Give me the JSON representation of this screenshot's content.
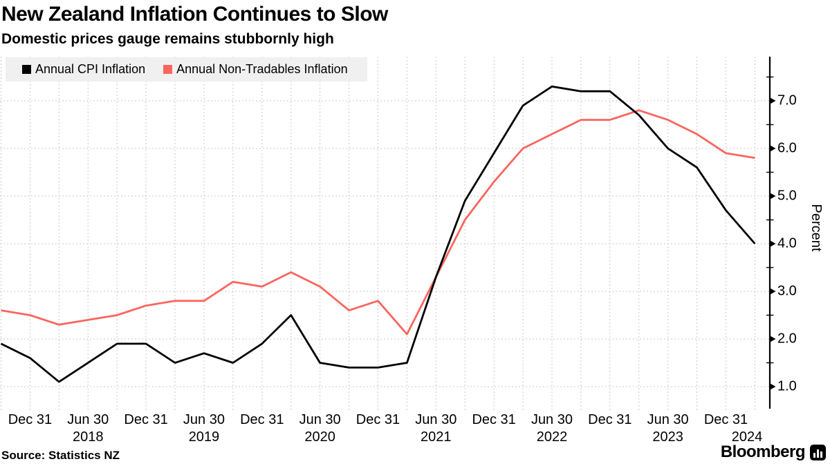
{
  "header": {
    "title": "New Zealand Inflation Continues to Slow",
    "subtitle": "Domestic prices gauge remains stubbornly high"
  },
  "legend": {
    "items": [
      {
        "label": "Annual CPI Inflation",
        "color": "#000000",
        "swatch": "black-square-icon"
      },
      {
        "label": "Annual Non-Tradables Inflation",
        "color": "#f9655e",
        "swatch": "red-square-icon"
      }
    ],
    "background": "#f0f0f0"
  },
  "chart_data": {
    "type": "line",
    "title": "New Zealand Inflation Continues to Slow",
    "subtitle": "Domestic prices gauge remains stubbornly high",
    "x": [
      "Sep 2017",
      "Dec 2017",
      "Mar 2018",
      "Jun 2018",
      "Sep 2018",
      "Dec 2018",
      "Mar 2019",
      "Jun 2019",
      "Sep 2019",
      "Dec 2019",
      "Mar 2020",
      "Jun 2020",
      "Sep 2020",
      "Dec 2020",
      "Mar 2021",
      "Jun 2021",
      "Sep 2021",
      "Dec 2021",
      "Mar 2022",
      "Jun 2022",
      "Sep 2022",
      "Dec 2022",
      "Mar 2023",
      "Jun 2023",
      "Sep 2023",
      "Dec 2023",
      "Mar 2024"
    ],
    "series": [
      {
        "name": "Annual CPI Inflation",
        "color": "#000000",
        "values": [
          1.9,
          1.6,
          1.1,
          1.5,
          1.9,
          1.9,
          1.5,
          1.7,
          1.5,
          1.9,
          2.5,
          1.5,
          1.4,
          1.4,
          1.5,
          3.3,
          4.9,
          5.9,
          6.9,
          7.3,
          7.2,
          7.2,
          6.7,
          6.0,
          5.6,
          4.7,
          4.0
        ]
      },
      {
        "name": "Annual Non-Tradables Inflation",
        "color": "#f9655e",
        "values": [
          2.6,
          2.5,
          2.3,
          2.4,
          2.5,
          2.7,
          2.8,
          2.8,
          3.2,
          3.1,
          3.4,
          3.1,
          2.6,
          2.8,
          2.1,
          3.3,
          4.5,
          5.3,
          6.0,
          6.3,
          6.6,
          6.6,
          6.8,
          6.6,
          6.3,
          5.9,
          5.8
        ]
      }
    ],
    "xlabel": "",
    "ylabel": "Percent",
    "ylim": [
      0.5,
      8.0
    ],
    "yticks_major": [
      1,
      2,
      3,
      4,
      5,
      6,
      7
    ],
    "ytick_labels": [
      "1.0",
      "2.0",
      "3.0",
      "4.0",
      "5.0",
      "6.0",
      "7.0"
    ],
    "yticks_minor": [
      1.5,
      2.5,
      3.5,
      4.5,
      5.5,
      6.5,
      7.5
    ],
    "xtick_labels": [
      "Dec 31",
      "Jun 30",
      "Dec 31",
      "Jun 30",
      "Dec 31",
      "Jun 30",
      "Dec 31",
      "Jun 30",
      "Dec 31",
      "Jun 30",
      "Dec 31",
      "Jun 30",
      "Dec 31"
    ],
    "year_labels": [
      "2018",
      "2019",
      "2020",
      "2021",
      "2022",
      "2023",
      "2024"
    ],
    "grid": "dashed, vertical each quarter and horizontal each 1.0",
    "grid_color": "#c9c9c9",
    "legend_position": "top-left",
    "axis_side": "right"
  },
  "footer": {
    "source": "Source: Statistics NZ",
    "brand": "Bloomberg"
  }
}
